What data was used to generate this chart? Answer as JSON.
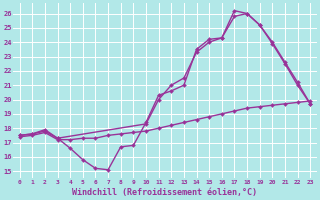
{
  "background_color": "#b2e8e8",
  "grid_color": "#ffffff",
  "line_color": "#993399",
  "line_width": 1.0,
  "marker": "D",
  "marker_size": 2.0,
  "xlabel": "Windchill (Refroidissement éolien,°C)",
  "xlabel_fontsize": 6.0,
  "ylabel_ticks": [
    15,
    16,
    17,
    18,
    19,
    20,
    21,
    22,
    23,
    24,
    25,
    26
  ],
  "xlabel_ticks": [
    0,
    1,
    2,
    3,
    4,
    5,
    6,
    7,
    8,
    9,
    10,
    11,
    12,
    13,
    14,
    15,
    16,
    17,
    18,
    19,
    20,
    21,
    22,
    23
  ],
  "xlim": [
    -0.5,
    23.5
  ],
  "ylim": [
    14.5,
    26.7
  ],
  "series1_x": [
    0,
    1,
    2,
    3,
    4,
    5,
    6,
    7,
    8,
    9,
    10,
    11,
    12,
    13,
    14,
    15,
    16,
    17,
    18,
    19,
    20,
    21,
    22,
    23
  ],
  "series1_y": [
    17.5,
    17.6,
    17.8,
    17.3,
    16.6,
    15.8,
    15.2,
    15.1,
    16.7,
    16.8,
    18.4,
    20.3,
    20.6,
    21.0,
    23.5,
    24.2,
    24.3,
    26.2,
    26.0,
    25.2,
    24.0,
    22.6,
    21.2,
    19.7
  ],
  "series2_x": [
    0,
    1,
    2,
    3,
    10,
    11,
    12,
    13,
    14,
    15,
    16,
    17,
    18,
    19,
    20,
    21,
    22,
    23
  ],
  "series2_y": [
    17.5,
    17.6,
    17.9,
    17.3,
    18.3,
    20.0,
    21.0,
    21.5,
    23.3,
    24.0,
    24.3,
    25.8,
    26.0,
    25.2,
    23.9,
    22.5,
    21.0,
    19.7
  ],
  "series3_x": [
    0,
    1,
    2,
    3,
    4,
    5,
    6,
    7,
    8,
    9,
    10,
    11,
    12,
    13,
    14,
    15,
    16,
    17,
    18,
    19,
    20,
    21,
    22,
    23
  ],
  "series3_y": [
    17.4,
    17.5,
    17.7,
    17.2,
    17.2,
    17.3,
    17.3,
    17.5,
    17.6,
    17.7,
    17.8,
    18.0,
    18.2,
    18.4,
    18.6,
    18.8,
    19.0,
    19.2,
    19.4,
    19.5,
    19.6,
    19.7,
    19.8,
    19.9
  ]
}
